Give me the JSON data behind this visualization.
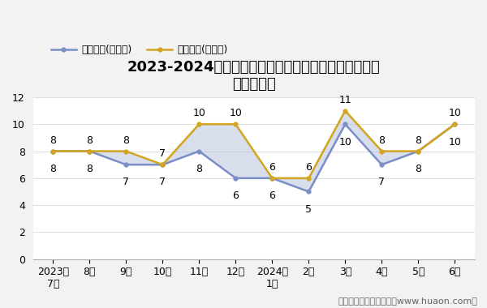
{
  "title_line1": "2023-2024年烟台经济技术开发区商品收发货人所在地",
  "title_line2": "进、出口额",
  "x_labels": [
    "2023年\n7月",
    "8月",
    "9月",
    "10月",
    "11月",
    "12月",
    "2024年\n1月",
    "2月",
    "3月",
    "4月",
    "5月",
    "6月"
  ],
  "export_values": [
    8,
    8,
    7,
    7,
    8,
    6,
    6,
    5,
    10,
    7,
    8,
    10
  ],
  "import_values": [
    8,
    8,
    8,
    7,
    10,
    10,
    6,
    6,
    11,
    8,
    8,
    10
  ],
  "export_label": "出口总额(亿美元)",
  "import_label": "进口总额(亿美元)",
  "export_color": "#7b8fc7",
  "import_color": "#d4a520",
  "fill_color": "#b8c4db",
  "fill_alpha": 0.55,
  "ylim": [
    0,
    12
  ],
  "yticks": [
    0,
    2,
    4,
    6,
    8,
    10,
    12
  ],
  "background_color": "#f2f2f2",
  "plot_bg_color": "#ffffff",
  "title_fontsize": 13,
  "label_fontsize": 9,
  "tick_fontsize": 9,
  "data_label_fontsize": 9,
  "watermark_text": "制图：华经产业研究院（www.huaon.com）",
  "watermark_fontsize": 8
}
